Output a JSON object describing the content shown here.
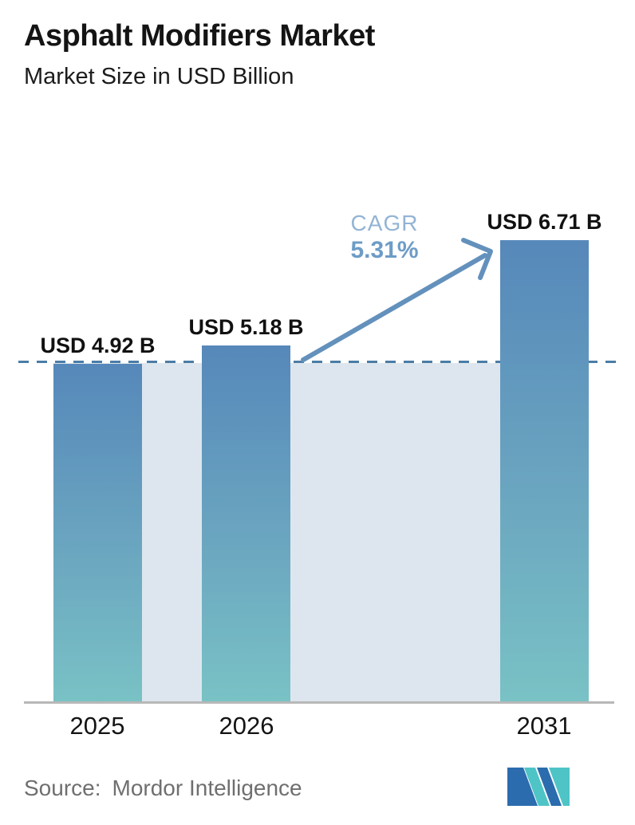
{
  "header": {
    "title": "Asphalt Modifiers Market",
    "subtitle": "Market Size in USD Billion"
  },
  "chart_data": {
    "type": "bar",
    "title": "Asphalt Modifiers Market",
    "subtitle": "Market Size in USD Billion",
    "unit": "USD Billion",
    "categories": [
      "2025",
      "2026",
      "2031"
    ],
    "values": [
      4.92,
      5.18,
      6.71
    ],
    "value_labels": [
      "USD 4.92 B",
      "USD 5.18 B",
      "USD 6.71 B"
    ],
    "ylim": [
      0,
      6.71
    ],
    "grid": false,
    "legend": "none",
    "annotations": {
      "cagr_label": "CAGR",
      "cagr_value": "5.31%",
      "arrow": "from 2026 bar top to 2031 bar top",
      "dashed_reference_value": 4.92
    },
    "colors": {
      "bar_gradient_top": "#5688ba",
      "bar_gradient_bottom": "#79c2c5",
      "band": "#dde6ee",
      "dashed_line": "#4b7da6",
      "arrow": "#6391bc",
      "cagr_label_color": "#93b4d4",
      "cagr_value_color": "#6d9cc6",
      "axis": "#b8b8b8"
    }
  },
  "footer": {
    "source_label": "Source:",
    "source_value": "Mordor Intelligence",
    "logo_name": "mordor-intelligence-logo",
    "logo_colors": {
      "blue": "#2b6cae",
      "teal": "#4fc4c6"
    }
  }
}
